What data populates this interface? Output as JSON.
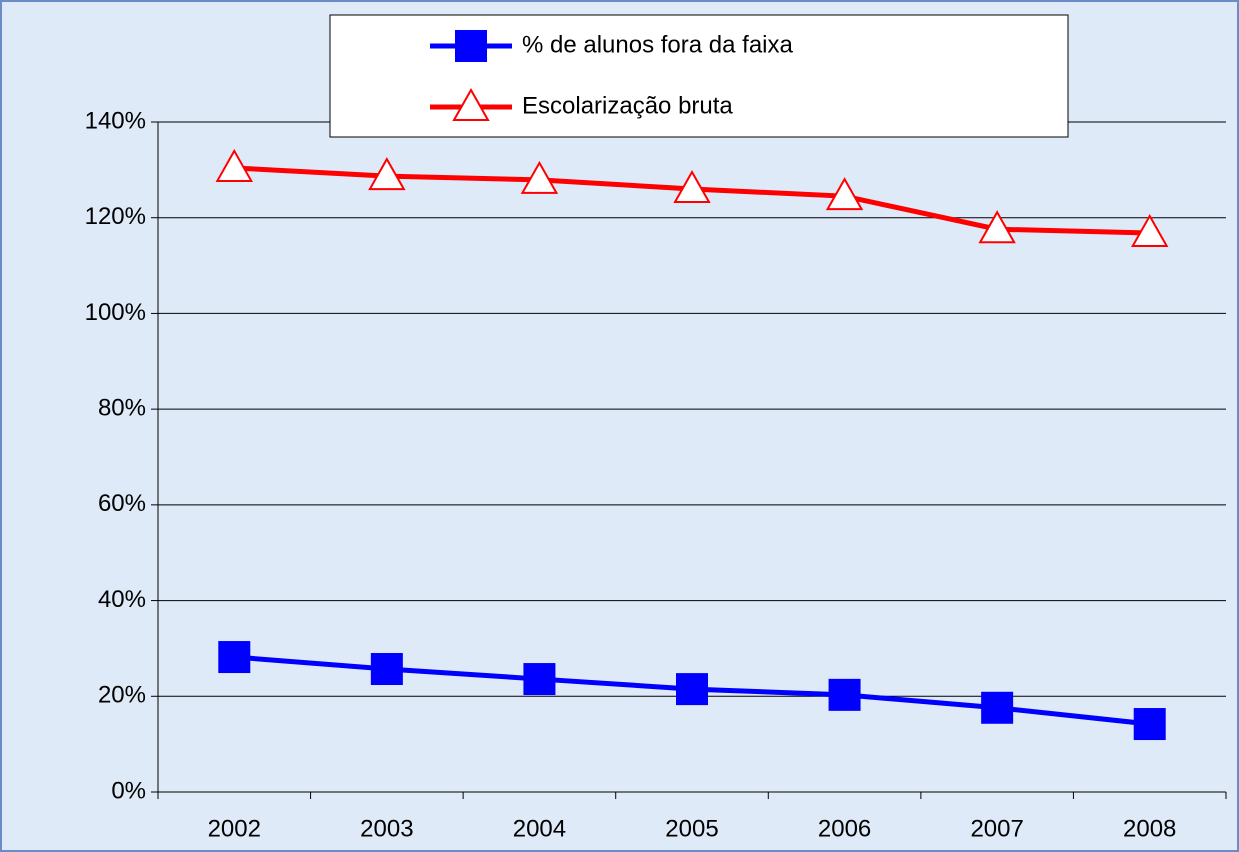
{
  "chart_data": {
    "type": "line",
    "categories": [
      "2002",
      "2003",
      "2004",
      "2005",
      "2006",
      "2007",
      "2008"
    ],
    "series": [
      {
        "name": "% de alunos fora da faixa",
        "color": "#0000ff",
        "marker": "square",
        "values": [
          28.2,
          25.7,
          23.6,
          21.5,
          20.3,
          17.6,
          14.2
        ]
      },
      {
        "name": "Escolarização bruta",
        "color": "#ff0000",
        "marker": "triangle",
        "values": [
          130.4,
          128.7,
          127.9,
          126.0,
          124.5,
          117.6,
          116.8
        ]
      }
    ],
    "ylim": [
      0,
      140
    ],
    "yticks": [
      {
        "value": 0,
        "label": "0%"
      },
      {
        "value": 20,
        "label": "20%"
      },
      {
        "value": 40,
        "label": "40%"
      },
      {
        "value": 60,
        "label": "60%"
      },
      {
        "value": 80,
        "label": "80%"
      },
      {
        "value": 100,
        "label": "100%"
      },
      {
        "value": 120,
        "label": "120%"
      },
      {
        "value": 140,
        "label": "140%"
      }
    ],
    "grid": true,
    "legend": "top"
  }
}
